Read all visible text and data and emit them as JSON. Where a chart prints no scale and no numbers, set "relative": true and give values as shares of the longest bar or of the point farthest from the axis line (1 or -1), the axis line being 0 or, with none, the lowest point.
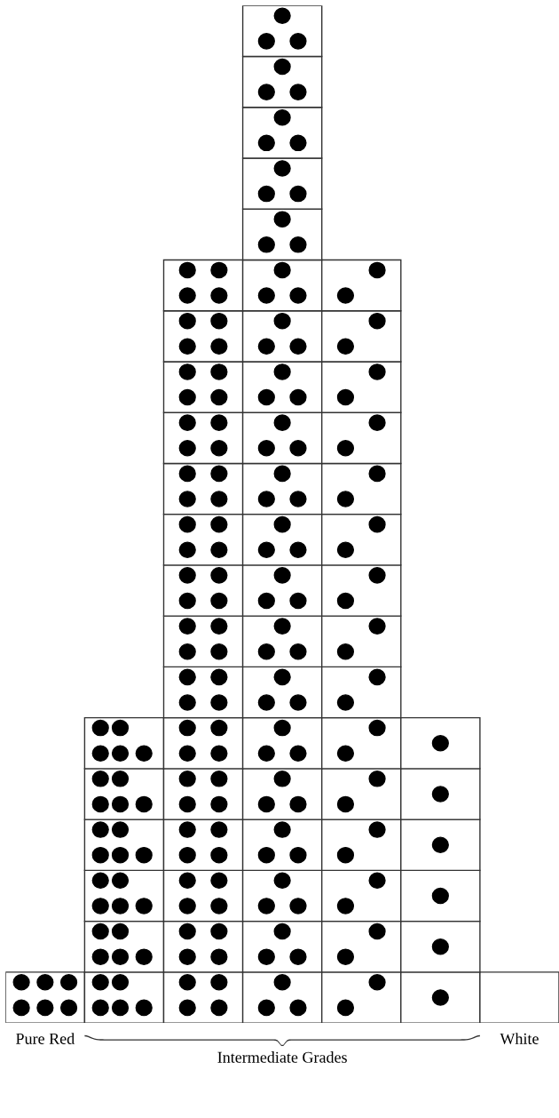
{
  "chart_data": {
    "type": "bar",
    "relative": true,
    "stacked": true,
    "categories": [
      "Pure Red",
      null,
      null,
      null,
      null,
      null,
      "White"
    ],
    "series": [
      {
        "color": "#ffffff",
        "values": [
          0.05,
          0.05,
          0.05,
          0.05,
          0.05,
          0.05,
          0.05
        ]
      },
      {
        "color": "#ffffff",
        "values": [
          null,
          0.05,
          0.05,
          0.05,
          0.05,
          0.05,
          null
        ]
      },
      {
        "color": "#ffffff",
        "values": [
          null,
          0.05,
          0.05,
          0.05,
          0.05,
          0.05,
          null
        ]
      },
      {
        "color": "#ffffff",
        "values": [
          null,
          0.05,
          0.05,
          0.05,
          0.05,
          0.05,
          null
        ]
      },
      {
        "color": "#ffffff",
        "values": [
          null,
          0.05,
          0.05,
          0.05,
          0.05,
          0.05,
          null
        ]
      },
      {
        "color": "#ffffff",
        "values": [
          null,
          0.05,
          0.05,
          0.05,
          0.05,
          0.05,
          null
        ]
      },
      {
        "color": "#ffffff",
        "values": [
          null,
          null,
          0.05,
          0.05,
          0.05,
          null,
          null
        ]
      },
      {
        "color": "#ffffff",
        "values": [
          null,
          null,
          0.05,
          0.05,
          0.05,
          null,
          null
        ]
      },
      {
        "color": "#ffffff",
        "values": [
          null,
          null,
          0.05,
          0.05,
          0.05,
          null,
          null
        ]
      },
      {
        "color": "#ffffff",
        "values": [
          null,
          null,
          0.05,
          0.05,
          0.05,
          null,
          null
        ]
      },
      {
        "color": "#ffffff",
        "values": [
          null,
          null,
          0.05,
          0.05,
          0.05,
          null,
          null
        ]
      },
      {
        "color": "#ffffff",
        "values": [
          null,
          null,
          0.05,
          0.05,
          0.05,
          null,
          null
        ]
      },
      {
        "color": "#ffffff",
        "values": [
          null,
          null,
          0.05,
          0.05,
          0.05,
          null,
          null
        ]
      },
      {
        "color": "#ffffff",
        "values": [
          null,
          null,
          0.05,
          0.05,
          0.05,
          null,
          null
        ]
      },
      {
        "color": "#ffffff",
        "values": [
          null,
          null,
          0.05,
          0.05,
          0.05,
          null,
          null
        ]
      },
      {
        "color": "#ffffff",
        "values": [
          null,
          null,
          null,
          0.05,
          null,
          null,
          null
        ]
      },
      {
        "color": "#ffffff",
        "values": [
          null,
          null,
          null,
          0.05,
          null,
          null,
          null
        ]
      },
      {
        "color": "#ffffff",
        "values": [
          null,
          null,
          null,
          0.05,
          null,
          null,
          null
        ]
      },
      {
        "color": "#ffffff",
        "values": [
          null,
          null,
          null,
          0.05,
          null,
          null,
          null
        ]
      },
      {
        "color": "#ffffff",
        "values": [
          null,
          null,
          null,
          0.05,
          null,
          null,
          null
        ]
      }
    ],
    "annotations": [
      "Intermediate Grades"
    ]
  }
}
